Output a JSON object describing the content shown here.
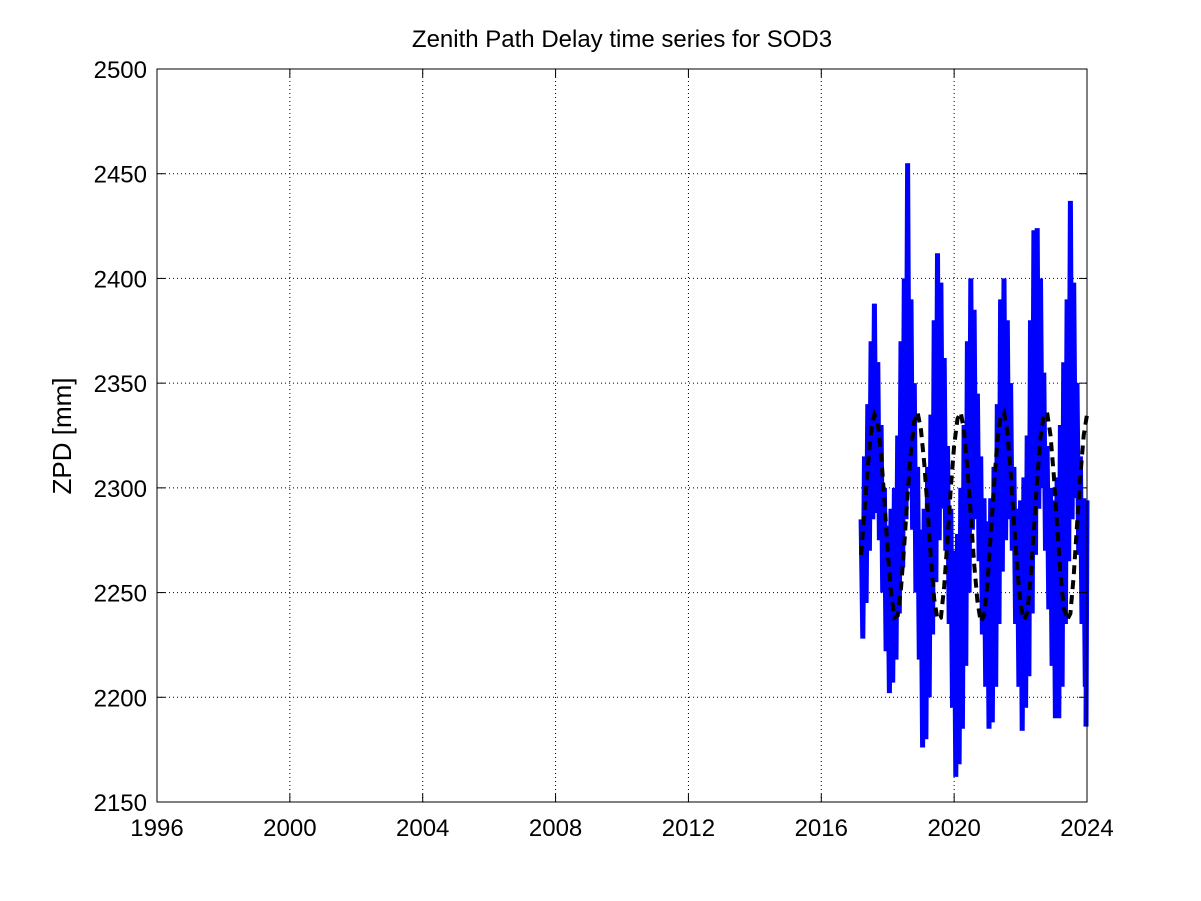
{
  "chart_data": {
    "type": "line",
    "title": "Zenith Path Delay time series for SOD3",
    "xlabel": "",
    "ylabel": "ZPD [mm]",
    "xlim": [
      1996,
      2024
    ],
    "ylim": [
      2150,
      2500
    ],
    "x_ticks": [
      "1996",
      "2000",
      "2004",
      "2008",
      "2012",
      "2016",
      "2020",
      "2024"
    ],
    "y_ticks": [
      "2150",
      "2200",
      "2250",
      "2300",
      "2350",
      "2400",
      "2450",
      "2500"
    ],
    "grid": true,
    "series": [
      {
        "style": "solid",
        "color": "#0000ff",
        "x": [
          2017.2,
          2017.3,
          2017.4,
          2017.5,
          2017.6,
          2017.7,
          2017.8,
          2017.9,
          2018.0,
          2018.1,
          2018.2,
          2018.3,
          2018.4,
          2018.5,
          2018.6,
          2018.7,
          2018.8,
          2018.9,
          2019.0,
          2019.1,
          2019.2,
          2019.3,
          2019.4,
          2019.5,
          2019.6,
          2019.7,
          2019.8,
          2019.9,
          2020.0,
          2020.1,
          2020.2,
          2020.3,
          2020.4,
          2020.5,
          2020.6,
          2020.7,
          2020.8,
          2020.9,
          2021.0,
          2021.1,
          2021.2,
          2021.3,
          2021.4,
          2021.5,
          2021.6,
          2021.7,
          2021.8,
          2021.9,
          2022.0,
          2022.1,
          2022.2,
          2022.3,
          2022.4,
          2022.5,
          2022.6,
          2022.7,
          2022.8,
          2022.9,
          2023.0,
          2023.1,
          2023.2,
          2023.3,
          2023.4,
          2023.5,
          2023.6,
          2023.7,
          2023.8,
          2023.9,
          2024.0
        ],
        "y_min": [
          2228,
          2245,
          2270,
          2285,
          2288,
          2275,
          2250,
          2222,
          2202,
          2207,
          2218,
          2240,
          2262,
          2285,
          2300,
          2280,
          2250,
          2218,
          2176,
          2180,
          2200,
          2230,
          2255,
          2275,
          2290,
          2270,
          2235,
          2195,
          2162,
          2168,
          2185,
          2215,
          2250,
          2280,
          2285,
          2265,
          2230,
          2205,
          2185,
          2188,
          2205,
          2235,
          2260,
          2275,
          2285,
          2270,
          2235,
          2205,
          2184,
          2195,
          2210,
          2240,
          2268,
          2290,
          2300,
          2270,
          2242,
          2215,
          2190,
          2190,
          2205,
          2235,
          2265,
          2285,
          2295,
          2268,
          2235,
          2205,
          2186
        ],
        "y_max": [
          2285,
          2315,
          2340,
          2370,
          2388,
          2360,
          2330,
          2300,
          2282,
          2290,
          2300,
          2325,
          2370,
          2400,
          2455,
          2390,
          2350,
          2310,
          2280,
          2290,
          2310,
          2335,
          2380,
          2412,
          2398,
          2362,
          2320,
          2290,
          2270,
          2278,
          2300,
          2330,
          2370,
          2400,
          2385,
          2345,
          2315,
          2295,
          2284,
          2295,
          2310,
          2340,
          2390,
          2400,
          2380,
          2350,
          2310,
          2290,
          2294,
          2305,
          2325,
          2380,
          2423,
          2424,
          2400,
          2355,
          2320,
          2300,
          2294,
          2305,
          2330,
          2360,
          2390,
          2437,
          2398,
          2350,
          2315,
          2295,
          2294
        ]
      },
      {
        "style": "dashed",
        "color": "#000000",
        "x": [
          2017.2,
          2017.3,
          2017.4,
          2017.5,
          2017.6,
          2017.7,
          2017.8,
          2017.9,
          2018.0,
          2018.1,
          2018.2,
          2018.3,
          2018.4,
          2018.5,
          2018.6,
          2018.7,
          2018.8,
          2018.9,
          2019.0,
          2019.1,
          2019.2,
          2019.3,
          2019.4,
          2019.5,
          2019.6,
          2019.7,
          2019.8,
          2019.9,
          2020.0,
          2020.1,
          2020.2,
          2020.3,
          2020.4,
          2020.5,
          2020.6,
          2020.7,
          2020.8,
          2020.9,
          2021.0,
          2021.1,
          2021.2,
          2021.3,
          2021.4,
          2021.5,
          2021.6,
          2021.7,
          2021.8,
          2021.9,
          2022.0,
          2022.1,
          2022.2,
          2022.3,
          2022.4,
          2022.5,
          2022.6,
          2022.7,
          2022.8,
          2022.9,
          2023.0,
          2023.1,
          2023.2,
          2023.3,
          2023.4,
          2023.5,
          2023.6,
          2023.7,
          2023.8,
          2023.9,
          2024.0
        ],
        "y": [
          2268,
          2289,
          2310,
          2327,
          2335,
          2331,
          2316,
          2294,
          2270,
          2250,
          2238,
          2239,
          2252,
          2273,
          2297,
          2318,
          2332,
          2336,
          2328,
          2312,
          2290,
          2266,
          2247,
          2237,
          2238,
          2253,
          2275,
          2300,
          2320,
          2333,
          2336,
          2327,
          2309,
          2287,
          2264,
          2246,
          2236,
          2239,
          2254,
          2277,
          2301,
          2322,
          2334,
          2336,
          2327,
          2308,
          2284,
          2261,
          2244,
          2237,
          2240,
          2256,
          2280,
          2304,
          2324,
          2335,
          2336,
          2325,
          2306,
          2282,
          2259,
          2243,
          2237,
          2240,
          2258,
          2282,
          2306,
          2325,
          2335
        ]
      }
    ]
  }
}
